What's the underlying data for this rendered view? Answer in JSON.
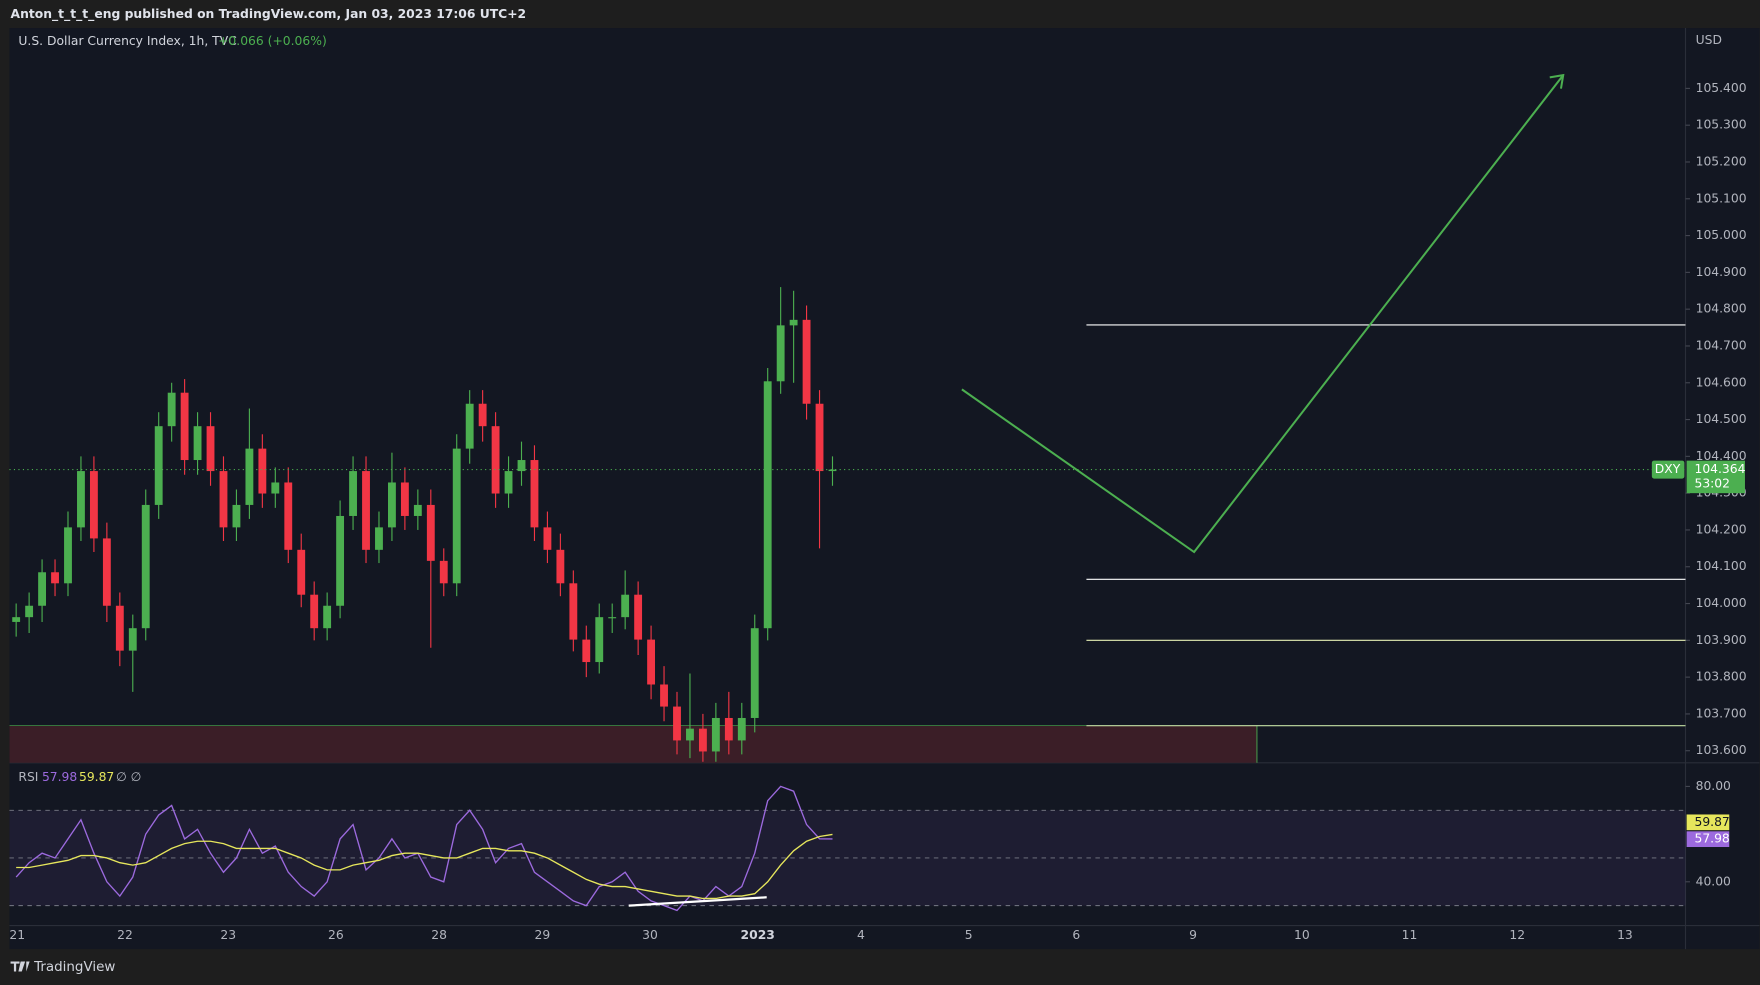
{
  "header": {
    "publisher": "Anton_t_t_t_eng published on TradingView.com, Jan 03, 2023 17:06 UTC+2"
  },
  "footer": {
    "brand": "TradingView"
  },
  "chart_data": {
    "type": "candlestick",
    "title": "U.S. Dollar Currency Index, 1h, TVC",
    "change_label": "+0.066 (+0.06%)",
    "currency": "USD",
    "x_labels": [
      "21",
      "22",
      "23",
      "26",
      "28",
      "29",
      "30",
      "2023",
      "4",
      "5",
      "6",
      "9",
      "10",
      "11",
      "12",
      "13"
    ],
    "up_color": "#4caf50",
    "down_color": "#f23645",
    "ylim": [
      103.567,
      105.564
    ],
    "yticks": [
      {
        "value": 103.6,
        "label": "103.600"
      },
      {
        "value": 103.7,
        "label": "103.700"
      },
      {
        "value": 103.8,
        "label": "103.800"
      },
      {
        "value": 103.9,
        "label": "103.900"
      },
      {
        "value": 104.0,
        "label": "104.000"
      },
      {
        "value": 104.1,
        "label": "104.100"
      },
      {
        "value": 104.2,
        "label": "104.200"
      },
      {
        "value": 104.3,
        "label": "104.300"
      },
      {
        "value": 104.4,
        "label": "104.400"
      },
      {
        "value": 104.5,
        "label": "104.500"
      },
      {
        "value": 104.6,
        "label": "104.600"
      },
      {
        "value": 104.7,
        "label": "104.700"
      },
      {
        "value": 104.8,
        "label": "104.800"
      },
      {
        "value": 104.9,
        "label": "104.900"
      },
      {
        "value": 105.0,
        "label": "105.000"
      },
      {
        "value": 105.1,
        "label": "105.100"
      },
      {
        "value": 105.2,
        "label": "105.200"
      },
      {
        "value": 105.3,
        "label": "105.300"
      },
      {
        "value": 105.4,
        "label": "105.400"
      }
    ],
    "ohlc": [
      [
        103.95,
        104.0,
        103.91,
        103.963
      ],
      [
        103.963,
        104.03,
        103.92,
        103.994
      ],
      [
        103.994,
        104.12,
        103.95,
        104.085
      ],
      [
        104.085,
        104.12,
        104.02,
        104.055
      ],
      [
        104.055,
        104.25,
        104.02,
        104.207
      ],
      [
        104.207,
        104.4,
        104.17,
        104.36
      ],
      [
        104.36,
        104.4,
        104.14,
        104.177
      ],
      [
        104.177,
        104.22,
        103.95,
        103.994
      ],
      [
        103.994,
        104.03,
        103.83,
        103.872
      ],
      [
        103.872,
        103.97,
        103.76,
        103.933
      ],
      [
        103.933,
        104.31,
        103.9,
        104.268
      ],
      [
        104.268,
        104.52,
        104.23,
        104.482
      ],
      [
        104.482,
        104.6,
        104.44,
        104.573
      ],
      [
        104.573,
        104.61,
        104.35,
        104.39
      ],
      [
        104.39,
        104.52,
        104.35,
        104.482
      ],
      [
        104.482,
        104.52,
        104.32,
        104.36
      ],
      [
        104.36,
        104.4,
        104.17,
        104.207
      ],
      [
        104.207,
        104.31,
        104.17,
        104.268
      ],
      [
        104.268,
        104.53,
        104.23,
        104.421
      ],
      [
        104.421,
        104.46,
        104.26,
        104.299
      ],
      [
        104.299,
        104.37,
        104.26,
        104.329
      ],
      [
        104.329,
        104.37,
        104.11,
        104.146
      ],
      [
        104.146,
        104.19,
        103.99,
        104.024
      ],
      [
        104.024,
        104.06,
        103.9,
        103.933
      ],
      [
        103.933,
        104.03,
        103.9,
        103.994
      ],
      [
        103.994,
        104.28,
        103.96,
        104.238
      ],
      [
        104.238,
        104.4,
        104.2,
        104.36
      ],
      [
        104.36,
        104.4,
        104.11,
        104.146
      ],
      [
        104.146,
        104.25,
        104.11,
        104.207
      ],
      [
        104.207,
        104.41,
        104.17,
        104.329
      ],
      [
        104.329,
        104.37,
        104.2,
        104.238
      ],
      [
        104.238,
        104.31,
        104.2,
        104.268
      ],
      [
        104.268,
        104.31,
        103.88,
        104.116
      ],
      [
        104.116,
        104.15,
        104.02,
        104.055
      ],
      [
        104.055,
        104.46,
        104.02,
        104.421
      ],
      [
        104.421,
        104.58,
        104.38,
        104.543
      ],
      [
        104.543,
        104.58,
        104.44,
        104.482
      ],
      [
        104.482,
        104.52,
        104.26,
        104.299
      ],
      [
        104.299,
        104.4,
        104.26,
        104.36
      ],
      [
        104.36,
        104.44,
        104.32,
        104.39
      ],
      [
        104.39,
        104.43,
        104.17,
        104.207
      ],
      [
        104.207,
        104.25,
        104.11,
        104.146
      ],
      [
        104.146,
        104.19,
        104.02,
        104.055
      ],
      [
        104.055,
        104.09,
        103.87,
        103.902
      ],
      [
        103.902,
        103.94,
        103.8,
        103.841
      ],
      [
        103.841,
        104.0,
        103.81,
        103.963
      ],
      [
        103.963,
        104.0,
        103.92,
        103.963
      ],
      [
        103.963,
        104.09,
        103.93,
        104.024
      ],
      [
        104.024,
        104.06,
        103.86,
        103.902
      ],
      [
        103.902,
        103.94,
        103.74,
        103.78
      ],
      [
        103.78,
        103.83,
        103.68,
        103.72
      ],
      [
        103.72,
        103.76,
        103.59,
        103.628
      ],
      [
        103.628,
        103.81,
        103.58,
        103.66
      ],
      [
        103.66,
        103.7,
        103.57,
        103.598
      ],
      [
        103.598,
        103.73,
        103.57,
        103.689
      ],
      [
        103.689,
        103.76,
        103.59,
        103.628
      ],
      [
        103.628,
        103.73,
        103.59,
        103.689
      ],
      [
        103.689,
        103.97,
        103.65,
        103.933
      ],
      [
        103.933,
        104.64,
        103.9,
        104.604
      ],
      [
        104.604,
        104.86,
        104.57,
        104.756
      ],
      [
        104.756,
        104.85,
        104.6,
        104.771
      ],
      [
        104.771,
        104.81,
        104.5,
        104.543
      ],
      [
        104.543,
        104.58,
        104.15,
        104.36
      ],
      [
        104.36,
        104.4,
        104.32,
        104.364
      ]
    ],
    "last": {
      "symbol": "DXY",
      "value": 104.364,
      "countdown": "53:02",
      "color": "#4caf50"
    },
    "levels": [
      {
        "value": 104.757,
        "color": "#ffffff"
      },
      {
        "value": 104.066,
        "color": "#ffffff"
      },
      {
        "value": 103.9,
        "color": "#e6f0b4"
      },
      {
        "value": 103.668,
        "color": "#c5e1a5"
      }
    ],
    "zone_color": "#3b1e27",
    "arrow": {
      "values": [
        104.582,
        104.14,
        105.436
      ],
      "color": "#4caf50"
    },
    "indicator": {
      "type": "line",
      "name": "RSI",
      "color": "#9c6ade",
      "ma_color": "#e6e65c",
      "value_label": "57.98",
      "ma_label": "59.87",
      "extra": "∅ ∅",
      "ylim": [
        21.65,
        89.88
      ],
      "yticks": [
        {
          "value": 80,
          "label": "80.00"
        },
        {
          "value": 40,
          "label": "40.00"
        }
      ],
      "bands": [
        70,
        50,
        30
      ],
      "divergence": [
        30,
        33.5
      ],
      "values": [
        42,
        48,
        52,
        50,
        58,
        66,
        52,
        40,
        34,
        42,
        60,
        68,
        72,
        58,
        62,
        52,
        44,
        50,
        62,
        52,
        55,
        44,
        38,
        34,
        40,
        58,
        64,
        45,
        50,
        58,
        50,
        52,
        42,
        40,
        64,
        70,
        62,
        48,
        54,
        56,
        44,
        40,
        36,
        32,
        30,
        38,
        40,
        44,
        36,
        32,
        30,
        28,
        34,
        32,
        38,
        34,
        38,
        52,
        74,
        80,
        78,
        64,
        58,
        57.98
      ],
      "ma": [
        46,
        46,
        47,
        48,
        49,
        51,
        51,
        50,
        48,
        47,
        48,
        51,
        54,
        56,
        57,
        57,
        56,
        54,
        54,
        54,
        54,
        52,
        50,
        47,
        45,
        45,
        47,
        48,
        49,
        51,
        52,
        52,
        51,
        50,
        50,
        52,
        54,
        54,
        53,
        53,
        52,
        50,
        47,
        44,
        41,
        39,
        38,
        38,
        37,
        36,
        35,
        34,
        34,
        33,
        33,
        34,
        34,
        35,
        40,
        47,
        53,
        57,
        59,
        59.87
      ]
    }
  }
}
